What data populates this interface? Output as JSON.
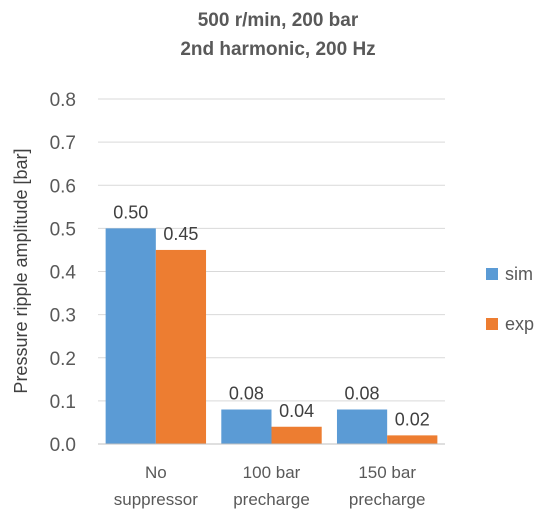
{
  "chart_data": {
    "type": "bar",
    "title": [
      "500 r/min, 200 bar",
      "2nd harmonic, 200 Hz"
    ],
    "ylabel": "Pressure ripple amplitude [bar]",
    "xlabel": "",
    "categories": [
      [
        "No",
        "suppressor"
      ],
      [
        "100 bar",
        "precharge"
      ],
      [
        "150 bar",
        "precharge"
      ]
    ],
    "series": [
      {
        "name": "sim",
        "color": "#5b9bd5",
        "values": [
          0.5,
          0.08,
          0.08
        ],
        "labels": [
          "0.50",
          "0.08",
          "0.08"
        ]
      },
      {
        "name": "exp",
        "color": "#ed7d31",
        "values": [
          0.45,
          0.04,
          0.02
        ],
        "labels": [
          "0.45",
          "0.04",
          "0.02"
        ]
      }
    ],
    "ylim": [
      0,
      0.8
    ],
    "yticks": [
      "0.0",
      "0.1",
      "0.2",
      "0.3",
      "0.4",
      "0.5",
      "0.6",
      "0.7",
      "0.8"
    ],
    "grid": true,
    "legend_position": "right"
  }
}
